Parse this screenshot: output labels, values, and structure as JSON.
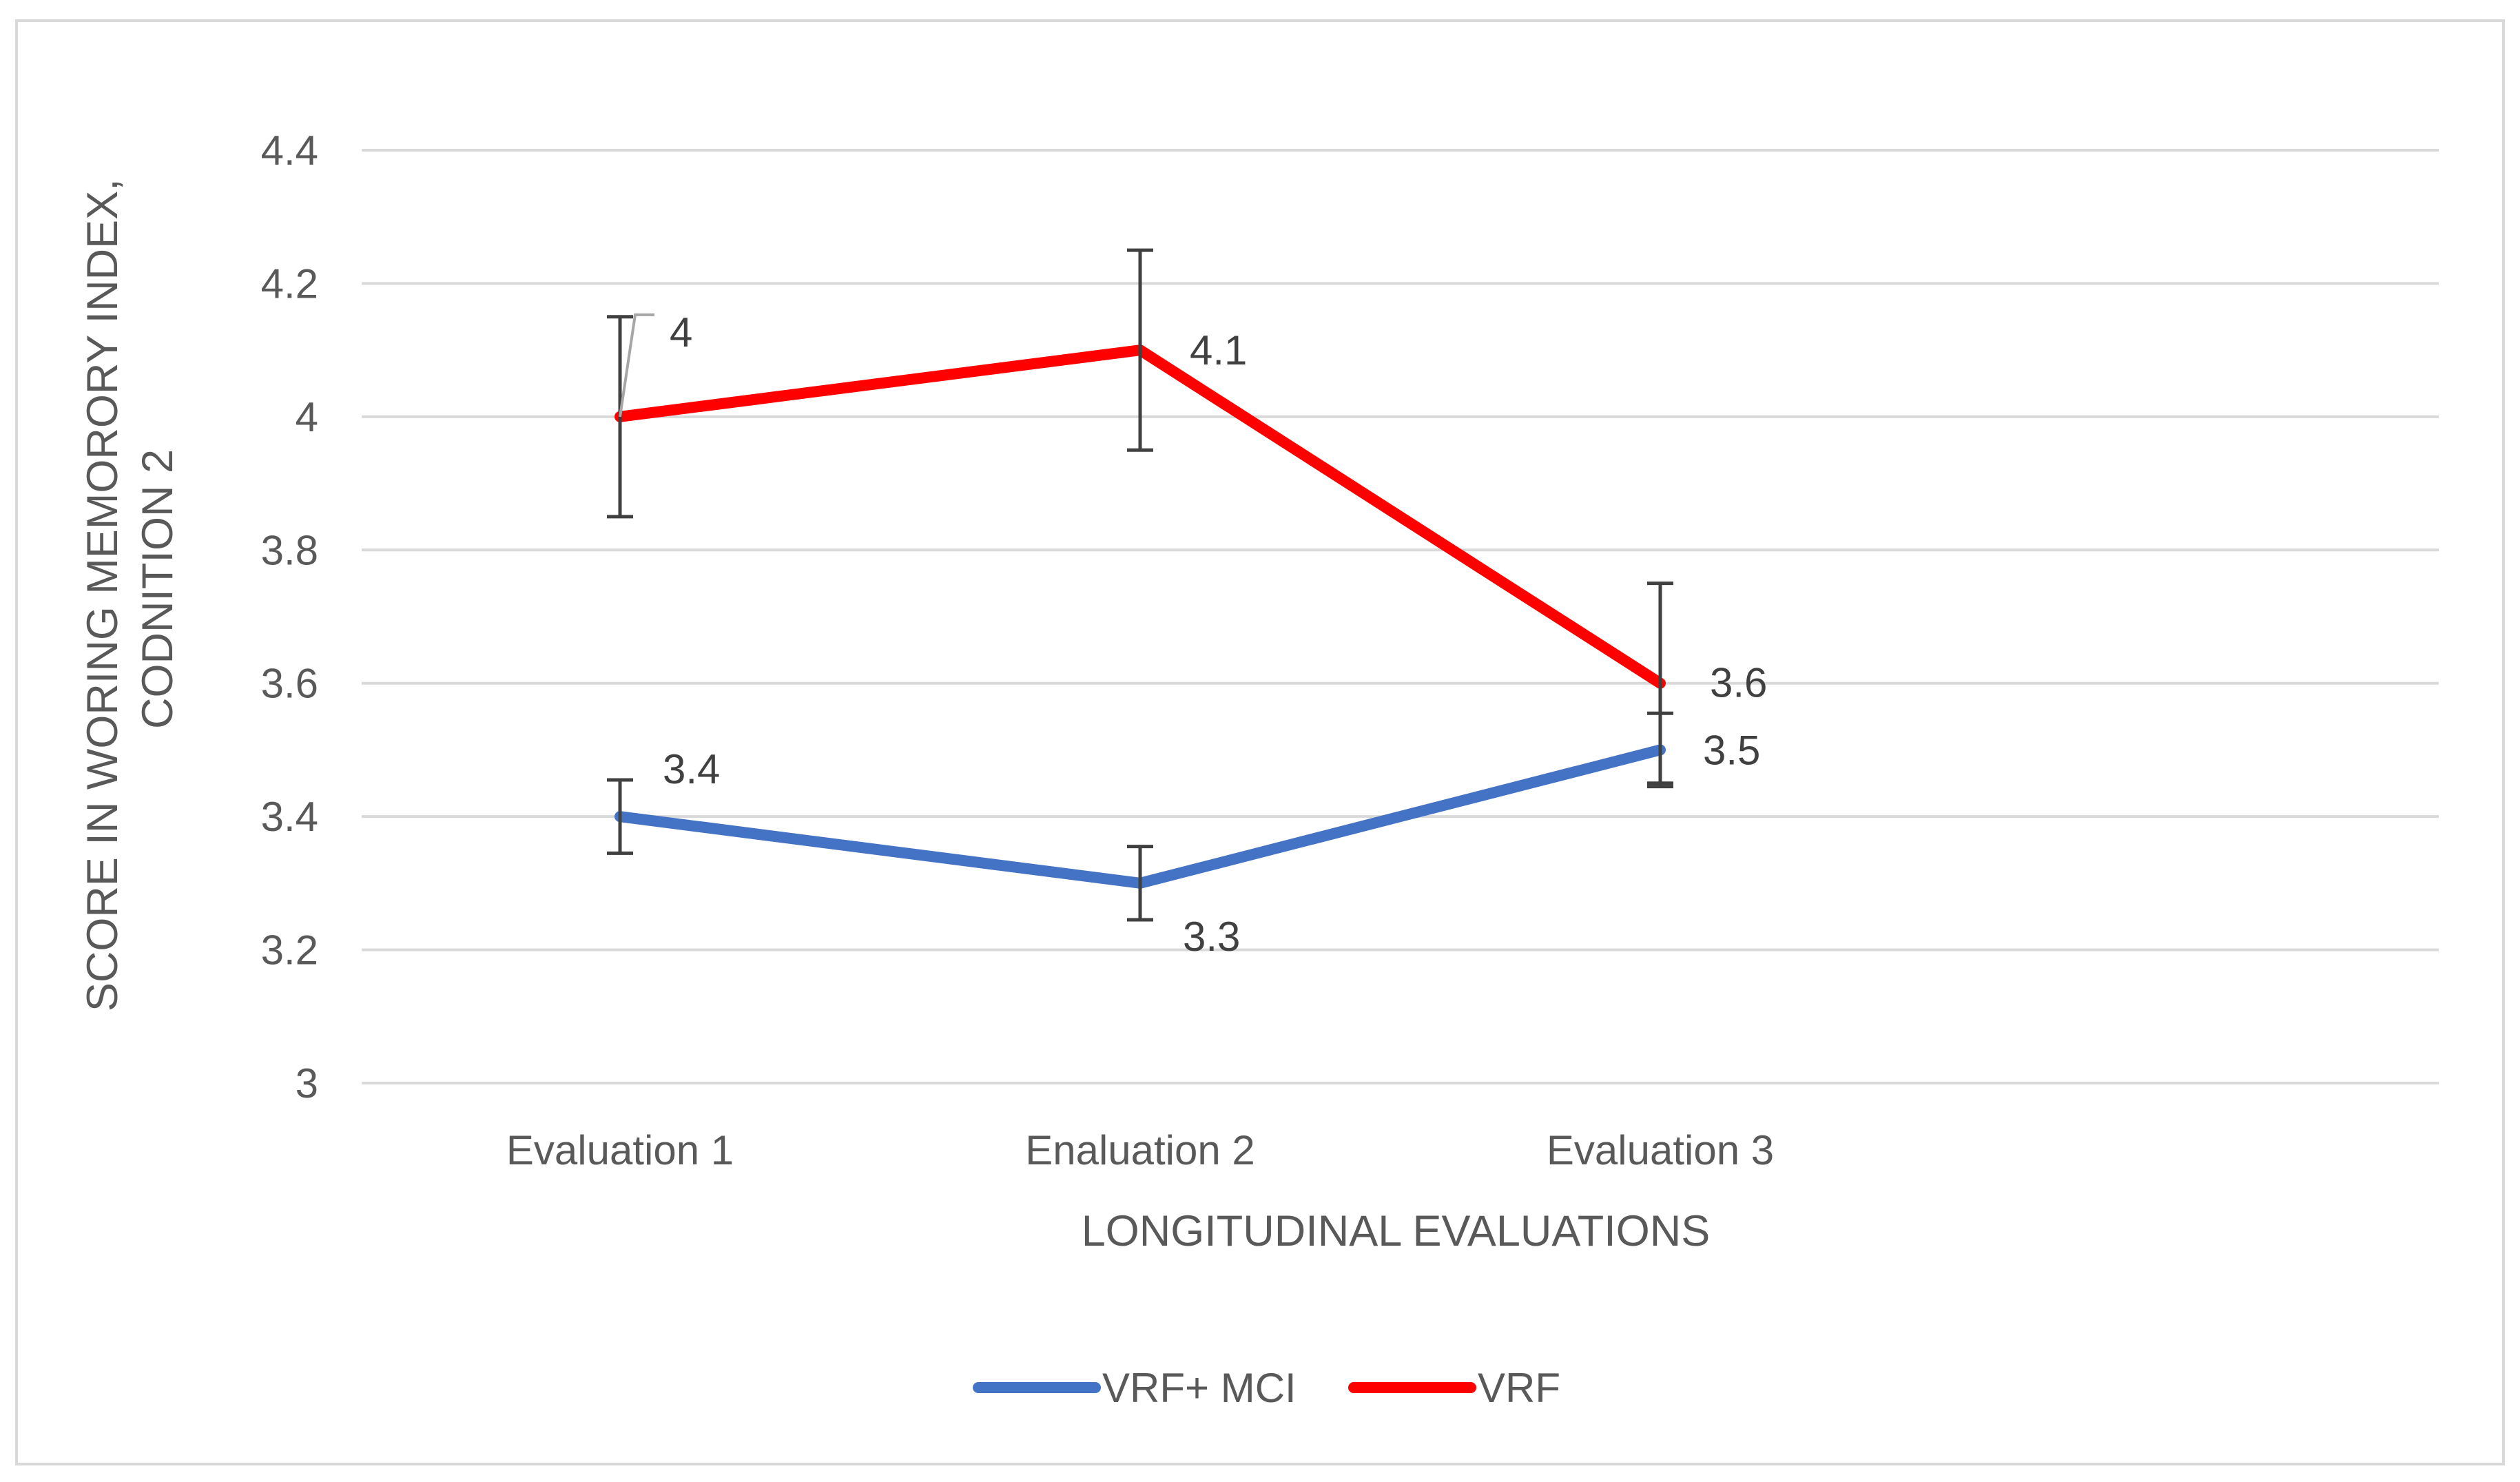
{
  "chart_data": {
    "type": "line",
    "title": "",
    "xlabel": "LONGITUDINAL EVALUATIONS",
    "ylabel_lines": [
      "SCORE IN WORING MEMORORY INDEX,",
      "CODNITION 2"
    ],
    "categories": [
      "Evaluation 1",
      "Enaluation 2",
      "Evaluation 3"
    ],
    "y_ticks": [
      "3",
      "3.2",
      "3.4",
      "3.6",
      "3.8",
      "4",
      "4.2",
      "4.4"
    ],
    "ylim": [
      3,
      4.4
    ],
    "grid": true,
    "legend_position": "bottom",
    "series": [
      {
        "name": "VRF+ MCI",
        "color": "#4472C4",
        "values": [
          3.4,
          3.3,
          3.5
        ],
        "labels": [
          "3.4",
          "3.3",
          "3.5"
        ],
        "error_low": [
          3.345,
          3.245,
          3.445
        ],
        "error_high": [
          3.455,
          3.355,
          3.555
        ]
      },
      {
        "name": "VRF",
        "color": "#FF0000",
        "values": [
          4.0,
          4.1,
          3.6
        ],
        "labels": [
          "4",
          "4.1",
          "3.6"
        ],
        "error_low": [
          3.85,
          3.95,
          3.45
        ],
        "error_high": [
          4.15,
          4.25,
          3.75
        ]
      }
    ]
  }
}
